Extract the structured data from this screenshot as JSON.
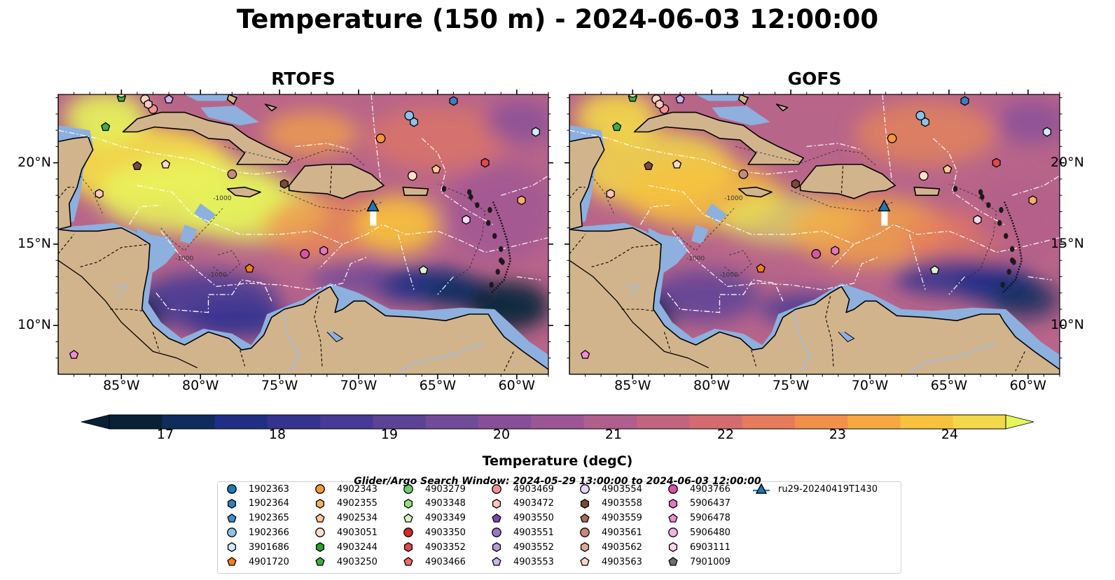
{
  "title": "Temperature (150 m) - 2024-06-03 12:00:00",
  "panels": [
    {
      "id": "rtofs",
      "title": "RTOFS"
    },
    {
      "id": "gofs",
      "title": "GOFS"
    }
  ],
  "map": {
    "lon_range": [
      -89,
      -58
    ],
    "lat_range": [
      7,
      24.2
    ],
    "lon_ticks": [
      "85°W",
      "80°W",
      "75°W",
      "70°W",
      "65°W",
      "60°W"
    ],
    "lat_ticks": [
      "20°N",
      "15°N",
      "10°N"
    ],
    "contour_labels": [
      "-1000",
      "-1000",
      "-1000"
    ]
  },
  "colorbar": {
    "label": "Temperature (degC)",
    "ticks": [
      "17",
      "18",
      "19",
      "20",
      "21",
      "22",
      "23",
      "24"
    ],
    "range": [
      16.5,
      24.5
    ],
    "extend": "both",
    "colors": [
      "#072136",
      "#0f2d5c",
      "#1f2f86",
      "#34338f",
      "#463a94",
      "#5c4396",
      "#714b98",
      "#874f9a",
      "#9c5695",
      "#b05e8c",
      "#c2647e",
      "#d46c6f",
      "#e77a5c",
      "#f2904b",
      "#f7a842",
      "#f8c23c",
      "#f3d949"
    ],
    "over_color": "#e6f55a"
  },
  "search_window": "Glider/Argo Search Window: 2024-05-29 13:00:00 to 2024-06-03 12:00:00",
  "legend": [
    {
      "label": "1902363",
      "marker": "circle",
      "color": "#1f77b4"
    },
    {
      "label": "1902364",
      "marker": "hexagon",
      "color": "#3a7fc1"
    },
    {
      "label": "1902365",
      "marker": "pentagon",
      "color": "#3a8fd0"
    },
    {
      "label": "1902366",
      "marker": "circle",
      "color": "#8cc2ec"
    },
    {
      "label": "3901686",
      "marker": "hexagon",
      "color": "#d3eafa"
    },
    {
      "label": "4901720",
      "marker": "pentagon",
      "color": "#f07e1b"
    },
    {
      "label": "4902343",
      "marker": "circle",
      "color": "#f5963a"
    },
    {
      "label": "4902355",
      "marker": "hexagon",
      "color": "#f7ad6b"
    },
    {
      "label": "4902534",
      "marker": "pentagon",
      "color": "#fcc79a"
    },
    {
      "label": "4903051",
      "marker": "circle",
      "color": "#fde0c5"
    },
    {
      "label": "4903244",
      "marker": "hexagon",
      "color": "#2ca02c"
    },
    {
      "label": "4903250",
      "marker": "pentagon",
      "color": "#40ad40"
    },
    {
      "label": "4903279",
      "marker": "circle",
      "color": "#6dcc6d"
    },
    {
      "label": "4903348",
      "marker": "hexagon",
      "color": "#98df8a"
    },
    {
      "label": "4903349",
      "marker": "pentagon",
      "color": "#d5f5c8"
    },
    {
      "label": "4903350",
      "marker": "circle",
      "color": "#d62728"
    },
    {
      "label": "4903352",
      "marker": "hexagon",
      "color": "#e0484a"
    },
    {
      "label": "4903466",
      "marker": "pentagon",
      "color": "#ec6a6b"
    },
    {
      "label": "4903469",
      "marker": "circle",
      "color": "#f29391"
    },
    {
      "label": "4903472",
      "marker": "hexagon",
      "color": "#fbc5c0"
    },
    {
      "label": "4903550",
      "marker": "pentagon",
      "color": "#7b4aa8"
    },
    {
      "label": "4903551",
      "marker": "circle",
      "color": "#9b77c7"
    },
    {
      "label": "4903552",
      "marker": "hexagon",
      "color": "#b59ad8"
    },
    {
      "label": "4903553",
      "marker": "pentagon",
      "color": "#ccb5ea"
    },
    {
      "label": "4903554",
      "marker": "circle",
      "color": "#e6d8f7"
    },
    {
      "label": "4903558",
      "marker": "hexagon",
      "color": "#7a4a3a"
    },
    {
      "label": "4903559",
      "marker": "pentagon",
      "color": "#a86a58"
    },
    {
      "label": "4903561",
      "marker": "circle",
      "color": "#c48a7a"
    },
    {
      "label": "4903562",
      "marker": "hexagon",
      "color": "#dcaa9a"
    },
    {
      "label": "4903563",
      "marker": "pentagon",
      "color": "#fad6c8"
    },
    {
      "label": "4903766",
      "marker": "circle",
      "color": "#d456a8"
    },
    {
      "label": "5906437",
      "marker": "hexagon",
      "color": "#e377c2"
    },
    {
      "label": "5906478",
      "marker": "pentagon",
      "color": "#ea8fcf"
    },
    {
      "label": "5906480",
      "marker": "circle",
      "color": "#f3b3e0"
    },
    {
      "label": "6903111",
      "marker": "hexagon",
      "color": "#fad8ef"
    },
    {
      "label": "7901009",
      "marker": "pentagon",
      "color": "#6e6e6e"
    },
    {
      "label": "ru29-20240419T1430",
      "marker": "glider",
      "color": "#1f77b4"
    }
  ],
  "floats": [
    {
      "lon": -85.0,
      "lat": 24.0,
      "marker": "pentagon",
      "color": "#40ad40"
    },
    {
      "lon": -85.0,
      "lat": 24.3,
      "marker": "circle",
      "color": "#fde0c5"
    },
    {
      "lon": -83.5,
      "lat": 23.9,
      "marker": "circle",
      "color": "#fad6c8"
    },
    {
      "lon": -83.0,
      "lat": 23.3,
      "marker": "circle",
      "color": "#f29391"
    },
    {
      "lon": -83.3,
      "lat": 23.6,
      "marker": "hexagon",
      "color": "#fbc5c0"
    },
    {
      "lon": -82.0,
      "lat": 23.9,
      "marker": "pentagon",
      "color": "#ccb5ea"
    },
    {
      "lon": -86.0,
      "lat": 22.2,
      "marker": "pentagon",
      "color": "#40ad40"
    },
    {
      "lon": -84.0,
      "lat": 19.8,
      "marker": "pentagon",
      "color": "#7a4a3a"
    },
    {
      "lon": -82.2,
      "lat": 19.9,
      "marker": "pentagon",
      "color": "#fad6c8"
    },
    {
      "lon": -86.4,
      "lat": 18.1,
      "marker": "hexagon",
      "color": "#fbc5c0"
    },
    {
      "lon": -78.0,
      "lat": 19.3,
      "marker": "circle",
      "color": "#c48a7a"
    },
    {
      "lon": -74.7,
      "lat": 18.7,
      "marker": "hexagon",
      "color": "#7a4a3a"
    },
    {
      "lon": -68.6,
      "lat": 21.5,
      "marker": "circle",
      "color": "#f5963a"
    },
    {
      "lon": -66.8,
      "lat": 22.9,
      "marker": "circle",
      "color": "#8cc2ec"
    },
    {
      "lon": -66.5,
      "lat": 22.5,
      "marker": "hexagon",
      "color": "#8cc2ec"
    },
    {
      "lon": -64.0,
      "lat": 23.8,
      "marker": "hexagon",
      "color": "#3a7fc1"
    },
    {
      "lon": -58.8,
      "lat": 21.9,
      "marker": "hexagon",
      "color": "#d3eafa"
    },
    {
      "lon": -66.6,
      "lat": 19.2,
      "marker": "circle",
      "color": "#fde0c5"
    },
    {
      "lon": -65.1,
      "lat": 19.6,
      "marker": "pentagon",
      "color": "#fcc79a"
    },
    {
      "lon": -62.0,
      "lat": 20.0,
      "marker": "hexagon",
      "color": "#e0484a"
    },
    {
      "lon": -59.7,
      "lat": 17.7,
      "marker": "hexagon",
      "color": "#f7ad6b"
    },
    {
      "lon": -63.2,
      "lat": 16.5,
      "marker": "hexagon",
      "color": "#fad8ef"
    },
    {
      "lon": -73.4,
      "lat": 14.4,
      "marker": "circle",
      "color": "#d456a8"
    },
    {
      "lon": -72.2,
      "lat": 14.6,
      "marker": "hexagon",
      "color": "#e377c2"
    },
    {
      "lon": -76.9,
      "lat": 13.5,
      "marker": "pentagon",
      "color": "#f07e1b"
    },
    {
      "lon": -65.9,
      "lat": 13.4,
      "marker": "pentagon",
      "color": "#d5f5c8"
    },
    {
      "lon": -88.0,
      "lat": 8.2,
      "marker": "pentagon",
      "color": "#ea8fcf"
    }
  ],
  "glider": {
    "lon": -69.1,
    "lat": 17.3,
    "label": "ru29-20240419T1430",
    "color": "#1f77b4"
  }
}
